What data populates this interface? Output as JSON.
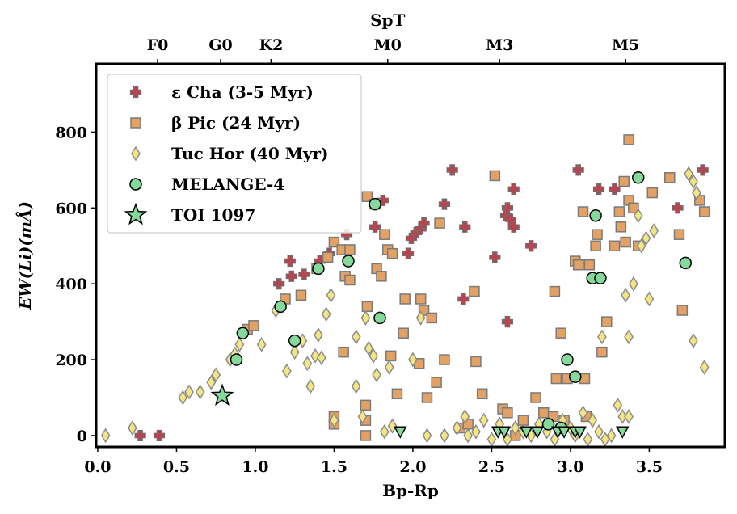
{
  "chart_data": {
    "type": "scatter",
    "xlabel": "Bp-Rp",
    "ylabel": "EW(Li)(mÅ)",
    "top_axis_title": "SpT",
    "xlim": [
      -0.01,
      3.98
    ],
    "ylim": [
      -30,
      980
    ],
    "x_ticks": [
      0.0,
      0.5,
      1.0,
      1.5,
      2.0,
      2.5,
      3.0,
      3.5
    ],
    "x_tick_labels": [
      "0.0",
      "0.5",
      "1.0",
      "1.5",
      "2.0",
      "2.5",
      "3.0",
      "3.5"
    ],
    "y_ticks": [
      0,
      200,
      400,
      600,
      800
    ],
    "y_tick_labels": [
      "0",
      "200",
      "400",
      "600",
      "800"
    ],
    "top_ticks": [
      {
        "label": "F0",
        "x": 0.38
      },
      {
        "label": "G0",
        "x": 0.78
      },
      {
        "label": "K2",
        "x": 1.1
      },
      {
        "label": "M0",
        "x": 1.84
      },
      {
        "label": "M3",
        "x": 2.55
      },
      {
        "label": "M5",
        "x": 3.35
      }
    ],
    "legend": {
      "position": "top-left"
    },
    "series": [
      {
        "name": "ε Cha (3-5 Myr)",
        "marker": "plus",
        "color": "#b5454f",
        "edge": "#6e6e6e",
        "points": [
          [
            0.27,
            0
          ],
          [
            0.39,
            0
          ],
          [
            1.15,
            400
          ],
          [
            1.22,
            460
          ],
          [
            1.23,
            420
          ],
          [
            1.31,
            425
          ],
          [
            1.41,
            460
          ],
          [
            1.47,
            480
          ],
          [
            1.58,
            530
          ],
          [
            1.76,
            550
          ],
          [
            1.81,
            620
          ],
          [
            1.97,
            480
          ],
          [
            1.99,
            520
          ],
          [
            2.02,
            535
          ],
          [
            2.05,
            545
          ],
          [
            2.07,
            560
          ],
          [
            2.2,
            610
          ],
          [
            2.25,
            700
          ],
          [
            2.32,
            360
          ],
          [
            2.33,
            550
          ],
          [
            2.52,
            470
          ],
          [
            2.59,
            580
          ],
          [
            2.6,
            300
          ],
          [
            2.6,
            600
          ],
          [
            2.62,
            570
          ],
          [
            2.64,
            650
          ],
          [
            2.64,
            550
          ],
          [
            2.75,
            500
          ],
          [
            3.05,
            700
          ],
          [
            3.18,
            650
          ],
          [
            3.28,
            650
          ],
          [
            3.68,
            600
          ],
          [
            3.84,
            700
          ]
        ]
      },
      {
        "name": "β Pic (24 Myr)",
        "marker": "square",
        "color": "#e4a164",
        "edge": "#7a7a7a",
        "points": [
          [
            0.95,
            280
          ],
          [
            0.99,
            290
          ],
          [
            1.19,
            360
          ],
          [
            1.29,
            370
          ],
          [
            1.39,
            440
          ],
          [
            1.46,
            470
          ],
          [
            1.5,
            510
          ],
          [
            1.55,
            490
          ],
          [
            1.57,
            420
          ],
          [
            1.6,
            490
          ],
          [
            1.6,
            410
          ],
          [
            1.5,
            50
          ],
          [
            1.5,
            30
          ],
          [
            1.56,
            220
          ],
          [
            1.7,
            0
          ],
          [
            1.7,
            40
          ],
          [
            1.7,
            80
          ],
          [
            1.71,
            340
          ],
          [
            1.71,
            630
          ],
          [
            1.76,
            610
          ],
          [
            1.77,
            440
          ],
          [
            1.8,
            420
          ],
          [
            1.82,
            530
          ],
          [
            1.84,
            490
          ],
          [
            1.87,
            480
          ],
          [
            1.86,
            210
          ],
          [
            1.9,
            110
          ],
          [
            1.94,
            270
          ],
          [
            1.95,
            360
          ],
          [
            2.04,
            190
          ],
          [
            2.05,
            360
          ],
          [
            2.07,
            330
          ],
          [
            2.09,
            100
          ],
          [
            2.12,
            310
          ],
          [
            2.15,
            140
          ],
          [
            2.17,
            560
          ],
          [
            2.2,
            200
          ],
          [
            2.3,
            20
          ],
          [
            2.35,
            30
          ],
          [
            2.39,
            380
          ],
          [
            2.4,
            195
          ],
          [
            2.44,
            110
          ],
          [
            2.52,
            685
          ],
          [
            2.57,
            70
          ],
          [
            2.6,
            60
          ],
          [
            2.65,
            0
          ],
          [
            2.7,
            40
          ],
          [
            2.78,
            100
          ],
          [
            2.83,
            60
          ],
          [
            2.89,
            50
          ],
          [
            2.9,
            380
          ],
          [
            2.91,
            150
          ],
          [
            2.94,
            270
          ],
          [
            2.96,
            40
          ],
          [
            2.98,
            150
          ],
          [
            3.03,
            460
          ],
          [
            3.05,
            450
          ],
          [
            3.08,
            590
          ],
          [
            3.09,
            150
          ],
          [
            3.1,
            50
          ],
          [
            3.12,
            450
          ],
          [
            3.16,
            500
          ],
          [
            3.17,
            530
          ],
          [
            3.2,
            220
          ],
          [
            3.23,
            300
          ],
          [
            3.28,
            500
          ],
          [
            3.31,
            590
          ],
          [
            3.32,
            550
          ],
          [
            3.34,
            670
          ],
          [
            3.35,
            510
          ],
          [
            3.37,
            780
          ],
          [
            3.37,
            620
          ],
          [
            3.4,
            600
          ],
          [
            3.43,
            500
          ],
          [
            3.52,
            640
          ],
          [
            3.63,
            680
          ],
          [
            3.69,
            530
          ],
          [
            3.71,
            330
          ],
          [
            3.82,
            620
          ],
          [
            3.85,
            590
          ]
        ]
      },
      {
        "name": "Tuc Hor (40 Myr)",
        "marker": "diamond",
        "color": "#f3e682",
        "edge": "#8c8c8c",
        "points": [
          [
            0.05,
            0
          ],
          [
            0.22,
            20
          ],
          [
            0.54,
            100
          ],
          [
            0.58,
            115
          ],
          [
            0.65,
            115
          ],
          [
            0.72,
            140
          ],
          [
            0.75,
            160
          ],
          [
            0.84,
            200
          ],
          [
            0.87,
            215
          ],
          [
            0.9,
            240
          ],
          [
            1.04,
            240
          ],
          [
            1.13,
            330
          ],
          [
            1.2,
            170
          ],
          [
            1.25,
            220
          ],
          [
            1.3,
            250
          ],
          [
            1.33,
            190
          ],
          [
            1.35,
            130
          ],
          [
            1.38,
            210
          ],
          [
            1.4,
            265
          ],
          [
            1.42,
            205
          ],
          [
            1.45,
            320
          ],
          [
            1.48,
            370
          ],
          [
            1.5,
            40
          ],
          [
            1.64,
            130
          ],
          [
            1.64,
            260
          ],
          [
            1.68,
            50
          ],
          [
            1.7,
            310
          ],
          [
            1.72,
            230
          ],
          [
            1.75,
            210
          ],
          [
            1.77,
            160
          ],
          [
            1.82,
            10
          ],
          [
            1.85,
            180
          ],
          [
            1.87,
            25
          ],
          [
            2.0,
            200
          ],
          [
            2.05,
            310
          ],
          [
            2.09,
            0
          ],
          [
            2.2,
            0
          ],
          [
            2.28,
            20
          ],
          [
            2.33,
            50
          ],
          [
            2.35,
            0
          ],
          [
            2.4,
            10
          ],
          [
            2.45,
            40
          ],
          [
            2.5,
            -10
          ],
          [
            2.55,
            30
          ],
          [
            2.6,
            -10
          ],
          [
            2.65,
            20
          ],
          [
            2.7,
            10
          ],
          [
            2.75,
            0
          ],
          [
            2.8,
            30
          ],
          [
            2.85,
            10
          ],
          [
            2.9,
            -10
          ],
          [
            2.95,
            40
          ],
          [
            3.0,
            20
          ],
          [
            3.03,
            0
          ],
          [
            3.08,
            60
          ],
          [
            3.11,
            -10
          ],
          [
            3.14,
            40
          ],
          [
            3.18,
            10
          ],
          [
            3.2,
            260
          ],
          [
            3.22,
            -10
          ],
          [
            3.26,
            0
          ],
          [
            3.3,
            80
          ],
          [
            3.33,
            50
          ],
          [
            3.35,
            370
          ],
          [
            3.37,
            260
          ],
          [
            3.37,
            50
          ],
          [
            3.4,
            400
          ],
          [
            3.43,
            580
          ],
          [
            3.45,
            500
          ],
          [
            3.48,
            520
          ],
          [
            3.5,
            360
          ],
          [
            3.53,
            540
          ],
          [
            3.75,
            690
          ],
          [
            3.78,
            670
          ],
          [
            3.8,
            640
          ],
          [
            3.78,
            250
          ],
          [
            3.85,
            180
          ]
        ]
      },
      {
        "name": "MELANGE-4",
        "marker": "circle",
        "color": "#85d99b",
        "edge": "#000000",
        "points": [
          [
            0.88,
            200
          ],
          [
            0.92,
            270
          ],
          [
            1.16,
            340
          ],
          [
            1.25,
            250
          ],
          [
            1.4,
            440
          ],
          [
            1.59,
            460
          ],
          [
            1.76,
            610
          ],
          [
            1.79,
            310
          ],
          [
            2.86,
            30
          ],
          [
            2.94,
            20
          ],
          [
            2.98,
            200
          ],
          [
            3.03,
            155
          ],
          [
            3.14,
            415
          ],
          [
            3.16,
            580
          ],
          [
            3.19,
            415
          ],
          [
            3.43,
            680
          ],
          [
            3.73,
            455
          ]
        ]
      },
      {
        "name": "",
        "marker": "triangle-down",
        "color": "#85d99b",
        "edge": "#000000",
        "points": [
          [
            1.92,
            10
          ],
          [
            2.54,
            10
          ],
          [
            2.58,
            10
          ],
          [
            2.72,
            10
          ],
          [
            2.79,
            10
          ],
          [
            2.92,
            10
          ],
          [
            2.96,
            10
          ],
          [
            3.03,
            10
          ],
          [
            3.06,
            10
          ],
          [
            3.33,
            10
          ]
        ]
      },
      {
        "name": "TOI 1097",
        "marker": "star",
        "color": "#85d99b",
        "edge": "#000000",
        "points": [
          [
            0.79,
            105
          ]
        ]
      }
    ]
  }
}
